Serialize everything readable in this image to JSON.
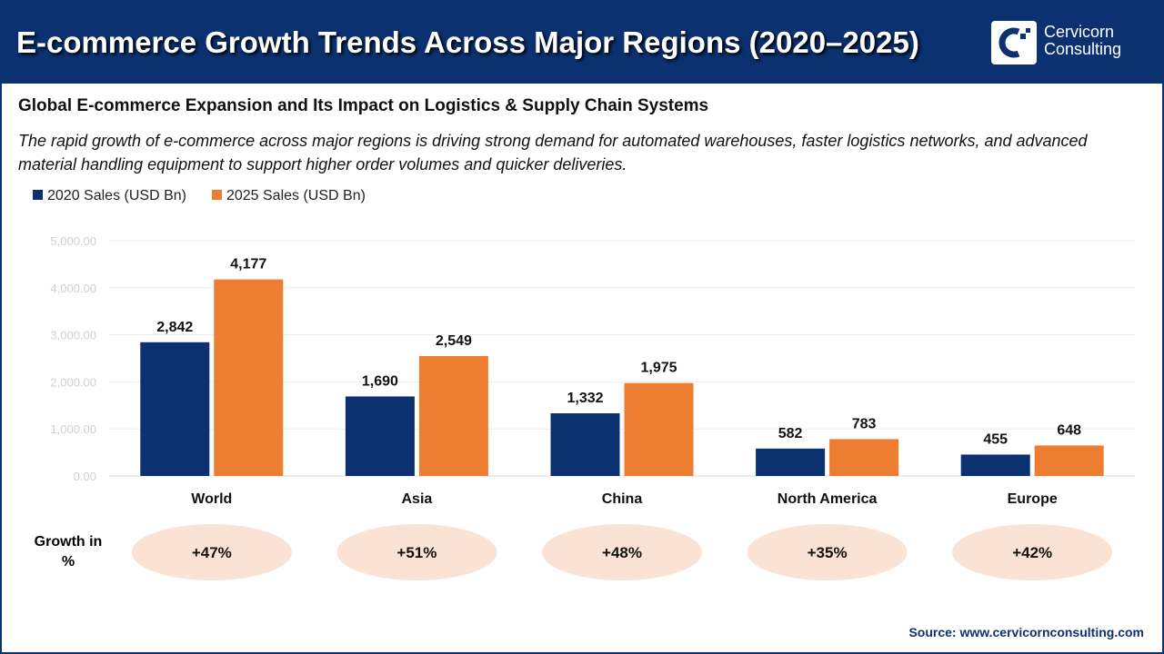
{
  "header": {
    "title": "E-commerce Growth Trends Across Major Regions (2020–2025)",
    "logo_line1": "Cervicorn",
    "logo_line2": "Consulting"
  },
  "subtitle": "Global E-commerce Expansion and Its Impact on Logistics & Supply Chain Systems",
  "description": "The rapid growth of e-commerce across major regions is driving strong demand for automated warehouses, faster logistics networks, and advanced material handling equipment to support higher order volumes and quicker deliveries.",
  "growth_label": "Growth in %",
  "source": "Source: www.cervicornconsulting.com",
  "colors": {
    "navy": "#0b3170",
    "orange": "#ed7d31",
    "ellipse": "#fae3d5"
  },
  "chart_data": {
    "type": "bar",
    "categories": [
      "World",
      "Asia",
      "China",
      "North America",
      "Europe"
    ],
    "series": [
      {
        "name": "2020 Sales (USD Bn)",
        "values": [
          2842,
          1690,
          1332,
          582,
          455
        ],
        "labels": [
          "2,842",
          "1,690",
          "1,332",
          "582",
          "455"
        ],
        "color": "#0b3170"
      },
      {
        "name": "2025 Sales (USD Bn)",
        "values": [
          4177,
          2549,
          1975,
          783,
          648
        ],
        "labels": [
          "4,177",
          "2,549",
          "1,975",
          "783",
          "648"
        ],
        "color": "#ed7d31"
      }
    ],
    "growth": [
      "+47%",
      "+51%",
      "+48%",
      "+35%",
      "+42%"
    ],
    "yticks": [
      "0.00",
      "1,000.00",
      "2,000.00",
      "3,000.00",
      "4,000.00",
      "5,000.00"
    ],
    "ylim": [
      0,
      5000
    ],
    "grid": true,
    "legend": "top-left"
  }
}
